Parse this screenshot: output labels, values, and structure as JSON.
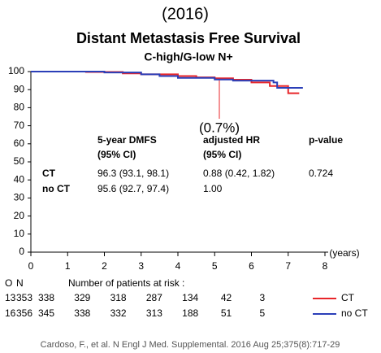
{
  "chart_data": {
    "type": "line",
    "drawstyle": "steps-post",
    "year": "(2016)",
    "title": "Distant Metastasis Free Survival",
    "subtitle": "C-high/G-low N+",
    "x_label": "(years)",
    "xlim": [
      0,
      8
    ],
    "xticks": [
      0,
      1,
      2,
      3,
      4,
      5,
      6,
      7,
      8
    ],
    "ylim": [
      0,
      100
    ],
    "yticks": [
      0,
      10,
      20,
      30,
      40,
      50,
      60,
      70,
      80,
      90,
      100
    ],
    "series": [
      {
        "name": "CT",
        "color": "#e8262a",
        "x": [
          0,
          1.5,
          2.5,
          3,
          4,
          4.5,
          5,
          5.5,
          6,
          6.5,
          7,
          7.3
        ],
        "values": [
          100,
          99.8,
          99,
          98.5,
          97.5,
          96.8,
          96.3,
          95.5,
          94,
          92,
          88,
          88
        ]
      },
      {
        "name": "no CT",
        "color": "#2b3fb8",
        "x": [
          0,
          2,
          3,
          3.5,
          4,
          5,
          5.5,
          6.6,
          6.7,
          7.4
        ],
        "values": [
          100,
          99.5,
          98.5,
          97.5,
          96.5,
          95.6,
          95,
          94,
          91,
          91
        ]
      }
    ],
    "annotation": "(0.7%)",
    "table": {
      "header": [
        [
          "5-year DMFS",
          "(95% CI)"
        ],
        [
          "adjusted HR",
          "(95% CI)"
        ],
        [
          "p-value"
        ]
      ],
      "rows": [
        [
          "CT",
          "96.3 (93.1, 98.1)",
          "0.88 (0.42, 1.82)",
          "0.724"
        ],
        [
          "no CT",
          "95.6 (92.7, 97.4)",
          "1.00"
        ]
      ]
    },
    "risk_table": {
      "title": "Number of patients at risk :",
      "columns": [
        "O",
        "N"
      ],
      "rows": [
        {
          "O": 13,
          "N": 353,
          "counts": [
            338,
            329,
            318,
            287,
            134,
            42,
            3
          ]
        },
        {
          "O": 16,
          "N": 356,
          "counts": [
            345,
            338,
            332,
            313,
            188,
            51,
            5
          ]
        }
      ]
    },
    "footer": "Cardoso, F., et al. N Engl J Med. Supplemental. 2016 Aug 25;375(8):717-29"
  }
}
